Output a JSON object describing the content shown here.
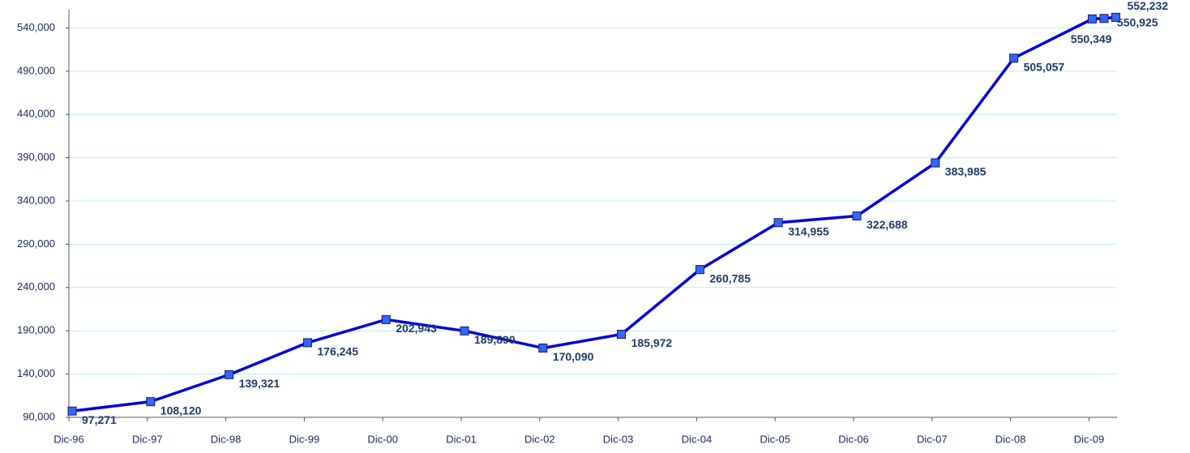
{
  "chart_data": {
    "type": "line",
    "categories": [
      "Dic-96",
      "Dic-97",
      "Dic-98",
      "Dic-99",
      "Dic-00",
      "Dic-01",
      "Dic-02",
      "Dic-03",
      "Dic-04",
      "Dic-05",
      "Dic-06",
      "Dic-07",
      "Dic-08",
      "Dic-09",
      null,
      null
    ],
    "series": [
      {
        "color": "#0000dd",
        "marker_color": "#3366ff",
        "values": [
          97271,
          108120,
          139321,
          176245,
          202943,
          189890,
          170090,
          185972,
          260785,
          314955,
          322688,
          383985,
          505057,
          550349,
          550925,
          552232
        ],
        "value_labels": [
          "97,271",
          "108,120",
          "139,321",
          "176,245",
          "202,943",
          "189,890",
          "170,090",
          "185,972",
          "260,785",
          "314,955",
          "322,688",
          "383,985",
          "505,057",
          "550,349",
          "550,925",
          "552,232"
        ]
      }
    ],
    "ylim": [
      90000,
      561000
    ],
    "yticks": [
      {
        "value": 90000,
        "label": "90,000"
      },
      {
        "value": 140000,
        "label": "140,000"
      },
      {
        "value": 190000,
        "label": "190,000"
      },
      {
        "value": 240000,
        "label": "240,000"
      },
      {
        "value": 290000,
        "label": "290,000"
      },
      {
        "value": 340000,
        "label": "340,000"
      },
      {
        "value": 390000,
        "label": "390,000"
      },
      {
        "value": 440000,
        "label": "440,000"
      },
      {
        "value": 490000,
        "label": "490,000"
      },
      {
        "value": 540000,
        "label": "540,000"
      }
    ],
    "grid": true
  }
}
